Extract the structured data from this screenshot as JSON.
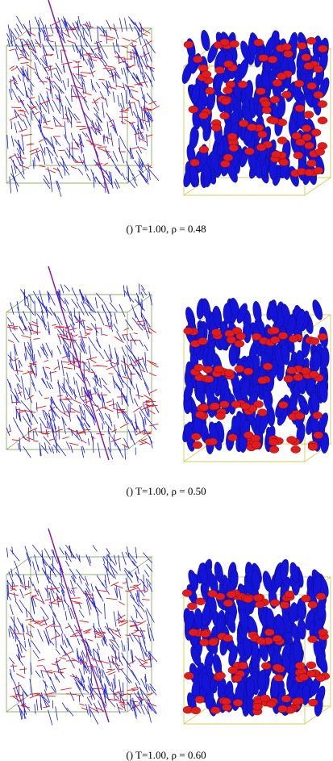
{
  "panels": [
    {
      "caption": "() T=1.00, ρ = 0.48"
    },
    {
      "caption": "() T=1.00, ρ = 0.50"
    },
    {
      "caption": "() T=1.00, ρ = 0.60"
    }
  ]
}
